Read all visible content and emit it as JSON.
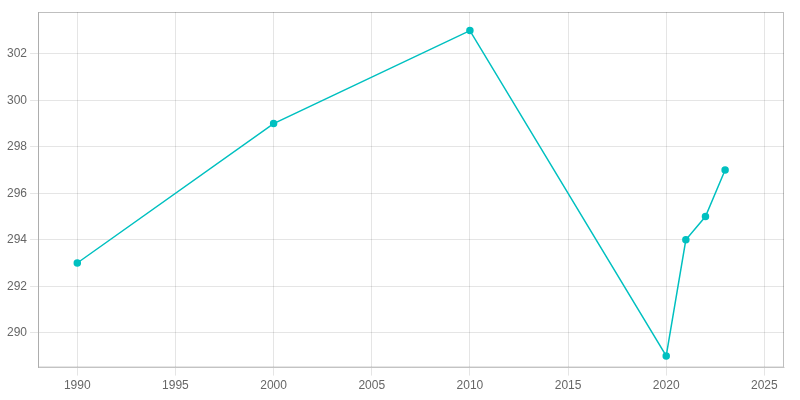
{
  "chart_data": {
    "type": "line",
    "x": [
      1990,
      2000,
      2010,
      2020,
      2021,
      2022,
      2023
    ],
    "values": [
      293,
      299,
      303,
      289,
      294,
      295,
      297
    ],
    "color": "#00C0C0",
    "marker": "circle",
    "xlim": [
      1988,
      2026
    ],
    "ylim": [
      288.5,
      303.8
    ],
    "xticks": [
      1990,
      1995,
      2000,
      2005,
      2010,
      2015,
      2020,
      2025
    ],
    "yticks": [
      290,
      292,
      294,
      296,
      298,
      300,
      302
    ],
    "grid": true
  }
}
